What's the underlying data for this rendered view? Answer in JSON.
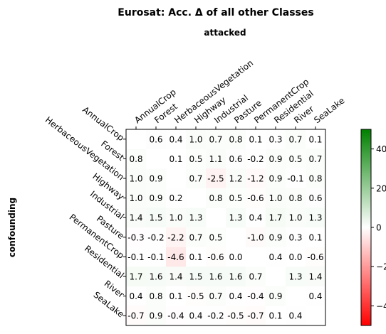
{
  "chart_data": {
    "type": "heatmap",
    "title": "Eurosat: Acc. Δ of all other Classes",
    "xlabel": "attacked",
    "ylabel": "confounding",
    "x_categories": [
      "AnnualCrop",
      "Forest",
      "HerbaceousVegetation",
      "Highway",
      "Industrial",
      "Pasture",
      "PermanentCrop",
      "Residential",
      "River",
      "SeaLake"
    ],
    "y_categories": [
      "AnnualCrop",
      "Forest",
      "HerbaceousVegetation",
      "Highway",
      "Industrial",
      "Pasture",
      "PermanentCrop",
      "Residential",
      "River",
      "SeaLake"
    ],
    "values": [
      [
        null,
        0.6,
        0.4,
        1.0,
        0.7,
        0.8,
        0.1,
        0.3,
        0.7,
        0.1
      ],
      [
        0.8,
        null,
        0.1,
        0.5,
        1.1,
        0.6,
        -0.2,
        0.9,
        0.5,
        0.7
      ],
      [
        1.0,
        0.9,
        null,
        0.7,
        -2.5,
        1.2,
        -1.2,
        0.9,
        -0.1,
        0.8
      ],
      [
        1.0,
        0.9,
        0.2,
        null,
        0.8,
        0.5,
        -0.6,
        1.0,
        0.8,
        0.6
      ],
      [
        1.4,
        1.5,
        1.0,
        1.3,
        null,
        1.3,
        0.4,
        1.7,
        1.0,
        1.3
      ],
      [
        -0.3,
        -0.2,
        -2.2,
        0.7,
        0.5,
        null,
        -1.0,
        0.9,
        0.3,
        0.1
      ],
      [
        -0.1,
        -0.1,
        -4.6,
        0.1,
        -0.6,
        -0.0,
        null,
        0.4,
        -0.0,
        -0.6
      ],
      [
        1.7,
        1.6,
        1.4,
        1.5,
        1.6,
        1.6,
        0.7,
        null,
        1.3,
        1.4
      ],
      [
        0.4,
        0.8,
        0.1,
        -0.5,
        0.7,
        0.4,
        -0.4,
        0.9,
        null,
        0.4
      ],
      [
        -0.7,
        0.9,
        -0.4,
        0.4,
        -0.2,
        -0.5,
        -0.7,
        0.1,
        0.4,
        null
      ]
    ],
    "colorbar": {
      "range": [
        -50,
        50
      ],
      "ticks": [
        40,
        20,
        0,
        -20,
        -40
      ],
      "colors": {
        "negative": "#ff0000",
        "zero": "#ffffff",
        "positive": "#008000"
      }
    },
    "grid": false,
    "legend": "colorbar right"
  }
}
